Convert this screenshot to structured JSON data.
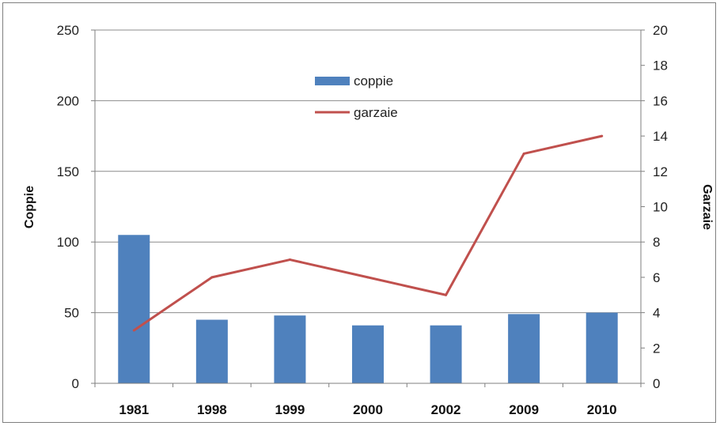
{
  "chart_data": {
    "type": "bar",
    "categories": [
      "1981",
      "1998",
      "1999",
      "2000",
      "2002",
      "2009",
      "2010"
    ],
    "series": [
      {
        "name": "coppie",
        "type": "bar",
        "axis": "left",
        "color": "#4f81bd",
        "values": [
          105,
          45,
          48,
          41,
          41,
          49,
          50
        ]
      },
      {
        "name": "garzaie",
        "type": "line",
        "axis": "right",
        "color": "#c0504d",
        "values": [
          3,
          6,
          7,
          6,
          5,
          13,
          14
        ]
      }
    ],
    "ylabel_left": "Coppie",
    "ylabel_right": "Garzaie",
    "ylim_left": [
      0,
      250
    ],
    "ylim_right": [
      0,
      20
    ],
    "yticks_left": [
      0,
      50,
      100,
      150,
      200,
      250
    ],
    "yticks_right": [
      0,
      2,
      4,
      6,
      8,
      10,
      12,
      14,
      16,
      18,
      20
    ],
    "grid": true,
    "legend_position": "top-center"
  }
}
